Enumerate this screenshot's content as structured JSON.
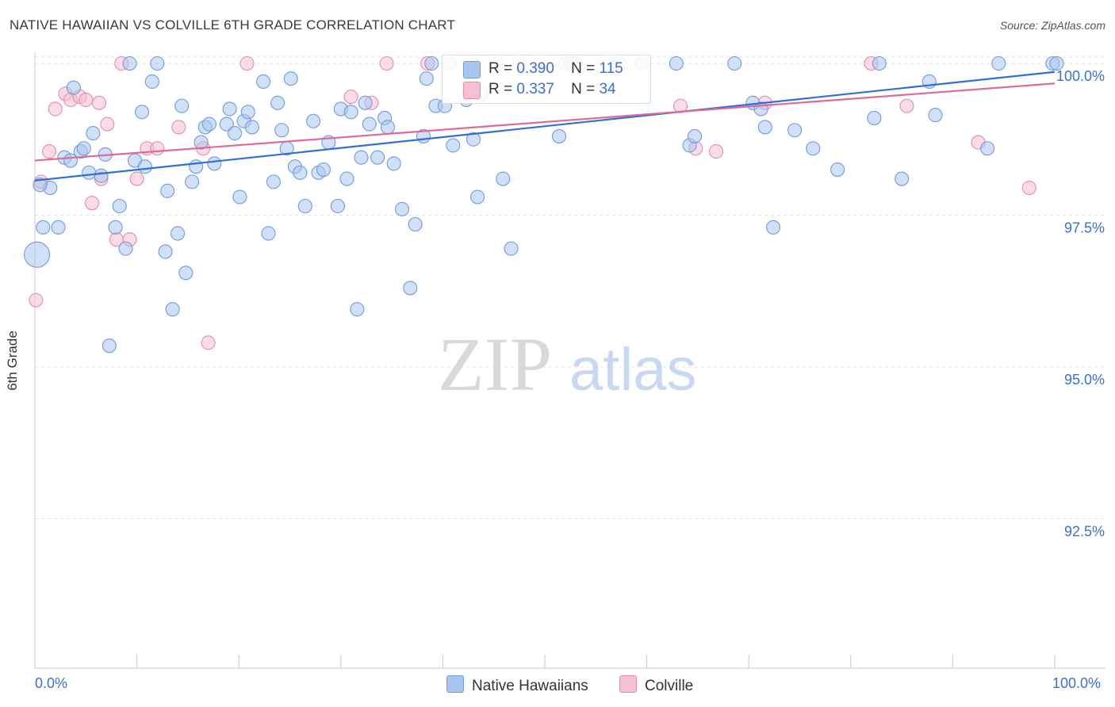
{
  "title": "NATIVE HAWAIIAN VS COLVILLE 6TH GRADE CORRELATION CHART",
  "source": "Source: ZipAtlas.com",
  "watermark": {
    "zip": "ZIP",
    "atlas": "atlas"
  },
  "colors": {
    "blue_fill": "#a9c6ee",
    "blue_stroke": "#6f9be0",
    "blue_line": "#2f6fd6",
    "pink_fill": "#f6c0d2",
    "pink_stroke": "#e98aaa",
    "pink_line": "#e06a96",
    "tick_label": "#3b6fd4"
  },
  "legend_top": [
    {
      "r_label": "R =",
      "r_value": "0.390",
      "n_label": "N =",
      "n_value": "115"
    },
    {
      "r_label": "R =",
      "r_value": "0.337",
      "n_label": "N =",
      "n_value": "34"
    }
  ],
  "legend_bottom": [
    "Native Hawaiians",
    "Colville"
  ],
  "x_tick_labels": {
    "left": "0.0%",
    "right": "100.0%"
  },
  "chart_data": {
    "type": "scatter",
    "title": "NATIVE HAWAIIAN VS COLVILLE 6TH GRADE CORRELATION CHART",
    "xlabel": "",
    "ylabel": "6th Grade",
    "xlim": [
      0,
      100
    ],
    "ylim": [
      90.5,
      100.35
    ],
    "y_ticks": [
      92.5,
      95.0,
      97.5,
      100.0
    ],
    "y_tick_labels": [
      "92.5%",
      "95.0%",
      "97.5%",
      "100.0%"
    ],
    "grid": true,
    "legend_position": "top-center",
    "series": [
      {
        "name": "Native Hawaiians",
        "R": 0.39,
        "N": 115,
        "trend": {
          "x": [
            0,
            100
          ],
          "y": [
            98.07,
            99.86
          ]
        },
        "points": [
          [
            0.2,
            96.85
          ],
          [
            0.8,
            97.3
          ],
          [
            1.5,
            97.95
          ],
          [
            2.3,
            97.3
          ],
          [
            2.9,
            98.45
          ],
          [
            3.5,
            98.4
          ],
          [
            3.8,
            99.6
          ],
          [
            4.5,
            98.55
          ],
          [
            4.8,
            98.6
          ],
          [
            5.3,
            98.2
          ],
          [
            5.7,
            98.85
          ],
          [
            6.5,
            98.15
          ],
          [
            6.9,
            98.5
          ],
          [
            7.3,
            95.35
          ],
          [
            7.9,
            97.3
          ],
          [
            8.3,
            97.65
          ],
          [
            8.9,
            96.95
          ],
          [
            9.3,
            100.0
          ],
          [
            9.8,
            98.4
          ],
          [
            10.5,
            99.2
          ],
          [
            10.8,
            98.3
          ],
          [
            11.5,
            99.7
          ],
          [
            12.0,
            100.0
          ],
          [
            12.8,
            96.9
          ],
          [
            13.0,
            97.9
          ],
          [
            13.5,
            95.95
          ],
          [
            14.0,
            97.2
          ],
          [
            14.4,
            99.3
          ],
          [
            14.8,
            96.55
          ],
          [
            15.4,
            98.05
          ],
          [
            15.8,
            98.3
          ],
          [
            16.3,
            98.7
          ],
          [
            16.7,
            98.95
          ],
          [
            17.1,
            99.0
          ],
          [
            17.6,
            98.35
          ],
          [
            18.8,
            99.0
          ],
          [
            19.1,
            99.25
          ],
          [
            19.6,
            98.85
          ],
          [
            20.1,
            97.8
          ],
          [
            20.5,
            99.05
          ],
          [
            20.9,
            99.2
          ],
          [
            21.3,
            98.95
          ],
          [
            22.4,
            99.7
          ],
          [
            22.9,
            97.2
          ],
          [
            23.4,
            98.05
          ],
          [
            23.8,
            99.35
          ],
          [
            24.2,
            98.9
          ],
          [
            24.7,
            98.6
          ],
          [
            25.1,
            99.75
          ],
          [
            25.5,
            98.3
          ],
          [
            26.0,
            98.2
          ],
          [
            26.5,
            97.65
          ],
          [
            27.3,
            99.05
          ],
          [
            27.8,
            98.2
          ],
          [
            28.3,
            98.25
          ],
          [
            28.8,
            98.7
          ],
          [
            29.7,
            97.65
          ],
          [
            30.0,
            99.25
          ],
          [
            30.6,
            98.1
          ],
          [
            31.0,
            99.2
          ],
          [
            31.6,
            95.95
          ],
          [
            32.0,
            98.45
          ],
          [
            32.4,
            99.35
          ],
          [
            32.8,
            99.0
          ],
          [
            33.6,
            98.45
          ],
          [
            34.3,
            99.1
          ],
          [
            34.6,
            98.95
          ],
          [
            35.2,
            98.35
          ],
          [
            36.0,
            97.6
          ],
          [
            36.8,
            96.3
          ],
          [
            37.3,
            97.35
          ],
          [
            38.1,
            98.8
          ],
          [
            38.4,
            99.75
          ],
          [
            38.9,
            100.0
          ],
          [
            39.3,
            99.3
          ],
          [
            40.2,
            99.3
          ],
          [
            40.6,
            100.0
          ],
          [
            41.0,
            98.65
          ],
          [
            42.3,
            99.4
          ],
          [
            43.0,
            98.75
          ],
          [
            43.4,
            97.8
          ],
          [
            43.8,
            99.5
          ],
          [
            45.3,
            100.0
          ],
          [
            45.9,
            98.1
          ],
          [
            46.7,
            96.95
          ],
          [
            47.5,
            100.0
          ],
          [
            49.5,
            100.0
          ],
          [
            51.4,
            98.8
          ],
          [
            52.6,
            100.0
          ],
          [
            53.0,
            100.0
          ],
          [
            56.3,
            100.0
          ],
          [
            57.3,
            100.0
          ],
          [
            59.5,
            100.0
          ],
          [
            62.9,
            100.0
          ],
          [
            64.2,
            98.65
          ],
          [
            64.7,
            98.8
          ],
          [
            68.6,
            100.0
          ],
          [
            70.4,
            99.35
          ],
          [
            71.2,
            99.25
          ],
          [
            71.6,
            98.95
          ],
          [
            72.4,
            97.3
          ],
          [
            74.5,
            98.9
          ],
          [
            76.3,
            98.6
          ],
          [
            78.7,
            98.25
          ],
          [
            82.3,
            99.1
          ],
          [
            82.8,
            100.0
          ],
          [
            85.0,
            98.1
          ],
          [
            87.7,
            99.7
          ],
          [
            88.3,
            99.15
          ],
          [
            93.4,
            98.6
          ],
          [
            94.5,
            100.0
          ],
          [
            99.8,
            100.0
          ],
          [
            100.2,
            100.0
          ],
          [
            0.5,
            98.0
          ],
          [
            52.0,
            100.0
          ]
        ]
      },
      {
        "name": "Colville",
        "R": 0.337,
        "N": 34,
        "trend": {
          "x": [
            0,
            100
          ],
          "y": [
            98.4,
            99.67
          ]
        },
        "points": [
          [
            0.1,
            96.1
          ],
          [
            0.6,
            98.05
          ],
          [
            1.4,
            98.55
          ],
          [
            2.0,
            99.25
          ],
          [
            3.0,
            99.5
          ],
          [
            3.5,
            99.4
          ],
          [
            4.4,
            99.45
          ],
          [
            5.0,
            99.4
          ],
          [
            5.6,
            97.7
          ],
          [
            6.3,
            99.35
          ],
          [
            6.5,
            98.1
          ],
          [
            7.1,
            99.0
          ],
          [
            8.0,
            97.1
          ],
          [
            8.5,
            100.0
          ],
          [
            9.3,
            97.1
          ],
          [
            10.0,
            98.1
          ],
          [
            11.0,
            98.6
          ],
          [
            12.0,
            98.6
          ],
          [
            14.1,
            98.95
          ],
          [
            16.5,
            98.6
          ],
          [
            17.0,
            95.4
          ],
          [
            20.8,
            100.0
          ],
          [
            31.0,
            99.45
          ],
          [
            33.0,
            99.35
          ],
          [
            34.5,
            100.0
          ],
          [
            38.5,
            100.0
          ],
          [
            63.3,
            99.3
          ],
          [
            64.8,
            98.6
          ],
          [
            66.8,
            98.55
          ],
          [
            71.6,
            99.35
          ],
          [
            82.0,
            100.0
          ],
          [
            85.5,
            99.3
          ],
          [
            92.5,
            98.7
          ],
          [
            97.5,
            97.95
          ]
        ]
      }
    ]
  }
}
